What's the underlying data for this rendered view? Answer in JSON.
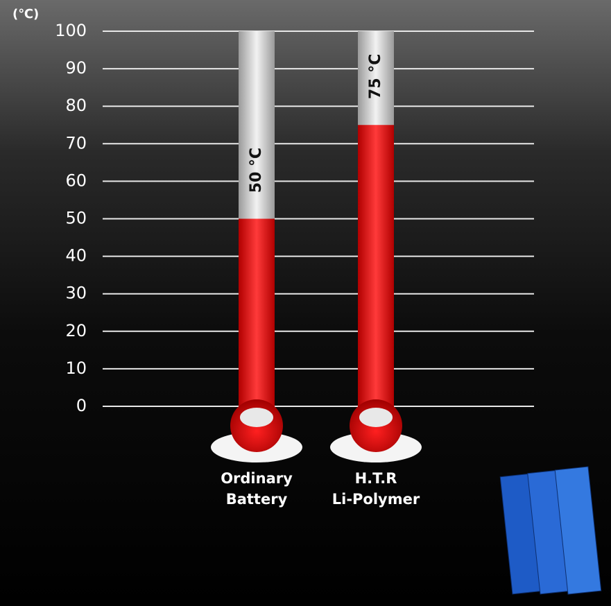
{
  "chart_data": {
    "type": "thermometer",
    "y_label": "(℃)",
    "categories": [
      "Ordinary\nBattery",
      "H.T.R\nLi-Polymer"
    ],
    "values": [
      50,
      75
    ],
    "value_labels": [
      "50 °C",
      "75 °C"
    ],
    "color": "#e60000",
    "ylim": [
      0,
      100
    ],
    "yticks": [
      0,
      10,
      20,
      30,
      40,
      50,
      60,
      70,
      80,
      90,
      100
    ],
    "grid": true
  }
}
